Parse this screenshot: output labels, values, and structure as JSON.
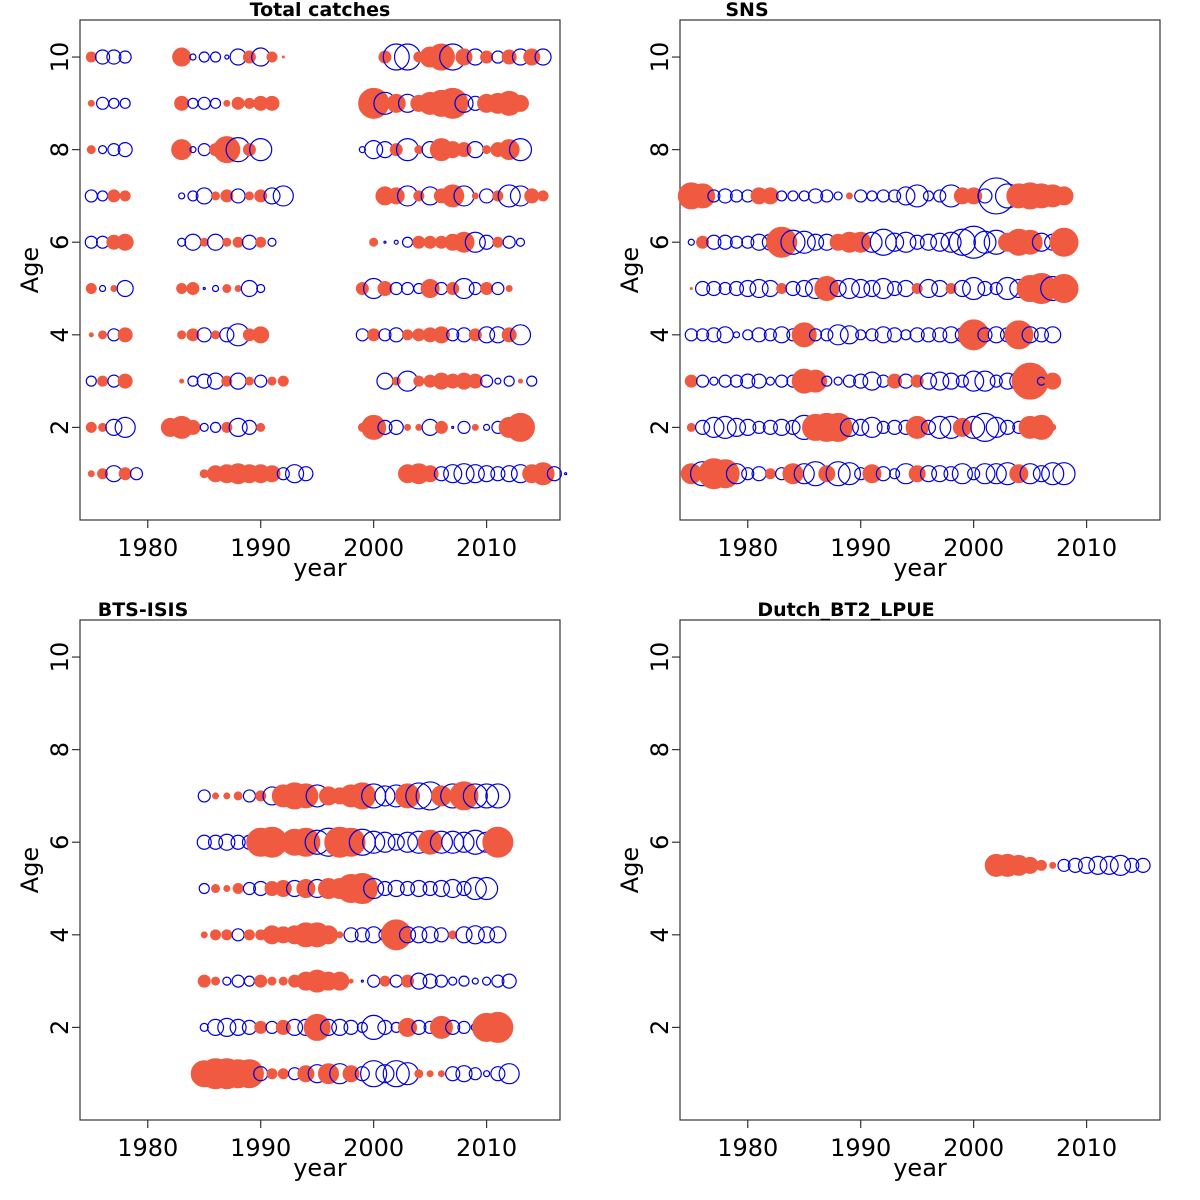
{
  "colors": {
    "positive": "#f05a40",
    "negative": "#0000dd",
    "axis": "#333333"
  },
  "chart_data": [
    {
      "type": "scatter",
      "title": "Total catches",
      "xlabel": "year",
      "ylabel": "Age",
      "xlim": [
        1974,
        2016.5
      ],
      "ylim": [
        0,
        10.8
      ],
      "xticks": [
        1980,
        1990,
        2000,
        2010
      ],
      "yticks": [
        2,
        4,
        6,
        8,
        10
      ],
      "marker_encoding": "filled = positive residual, open = negative residual; size = magnitude",
      "ages": [
        1,
        2,
        3,
        4,
        5,
        6,
        7,
        8,
        9,
        10
      ],
      "series": [
        {
          "age": 1,
          "year_start": 1975,
          "sizes": [
            3,
            5,
            -8,
            6,
            -6,
            0,
            0,
            0,
            0,
            0,
            4,
            8,
            9,
            10,
            9,
            9,
            8,
            -6,
            -9,
            -7,
            0,
            0,
            0,
            0,
            0,
            0,
            0,
            0,
            9,
            10,
            8,
            -7,
            -9,
            -10,
            -9,
            -8,
            -7,
            -8,
            -9,
            9,
            11,
            -7,
            -1
          ]
        },
        {
          "age": 2,
          "year_start": 1975,
          "sizes": [
            5,
            4,
            -8,
            -10,
            0,
            0,
            0,
            9,
            11,
            7,
            -4,
            -5,
            5,
            -9,
            -7,
            4,
            0,
            0,
            0,
            0,
            0,
            0,
            0,
            0,
            4,
            12,
            -7,
            -7,
            3,
            3,
            -8,
            6,
            -1,
            -6,
            3,
            -3,
            -6,
            10,
            14
          ]
        },
        {
          "age": 3,
          "year_start": 1975,
          "sizes": [
            -5,
            5,
            -6,
            7,
            0,
            0,
            0,
            0,
            2,
            -5,
            -7,
            -8,
            5,
            -8,
            4,
            -6,
            4,
            5,
            0,
            0,
            0,
            0,
            0,
            0,
            0,
            0,
            -8,
            4,
            -10,
            5,
            6,
            8,
            7,
            8,
            7,
            -6,
            -3,
            -5,
            2,
            -5
          ]
        },
        {
          "age": 4,
          "year_start": 1975,
          "sizes": [
            2,
            4,
            -6,
            7,
            0,
            0,
            0,
            0,
            4,
            6,
            -7,
            4,
            -7,
            -11,
            6,
            8,
            0,
            0,
            0,
            0,
            0,
            0,
            0,
            0,
            -6,
            6,
            -6,
            -7,
            5,
            6,
            7,
            8,
            -6,
            -7,
            6,
            -8,
            -8,
            7,
            -10
          ]
        },
        {
          "age": 5,
          "year_start": 1975,
          "sizes": [
            5,
            -3,
            3,
            -8,
            0,
            0,
            0,
            0,
            5,
            6,
            -1,
            -3,
            4,
            3,
            -8,
            -4,
            0,
            0,
            0,
            0,
            0,
            0,
            0,
            0,
            6,
            -10,
            7,
            -6,
            -6,
            -5,
            9,
            -6,
            6,
            -10,
            -6,
            6,
            -6,
            3
          ]
        },
        {
          "age": 6,
          "year_start": 1975,
          "sizes": [
            -6,
            -6,
            7,
            8,
            0,
            0,
            0,
            0,
            -4,
            -8,
            4,
            -8,
            4,
            5,
            -7,
            5,
            -4,
            0,
            0,
            0,
            0,
            0,
            0,
            0,
            0,
            4,
            -1,
            -2,
            -5,
            6,
            6,
            6,
            8,
            10,
            -10,
            -7,
            5,
            -6,
            -4
          ]
        },
        {
          "age": 7,
          "year_start": 1975,
          "sizes": [
            -6,
            -5,
            6,
            5,
            0,
            0,
            0,
            0,
            -3,
            -5,
            -8,
            4,
            6,
            -7,
            4,
            6,
            -8,
            -10,
            0,
            0,
            0,
            0,
            0,
            0,
            0,
            0,
            9,
            8,
            -10,
            5,
            -9,
            7,
            11,
            -10,
            3,
            -7,
            5,
            -11,
            -10,
            7,
            5
          ]
        },
        {
          "age": 8,
          "year_start": 1975,
          "sizes": [
            4,
            -4,
            -6,
            -7,
            0,
            0,
            0,
            0,
            10,
            -3,
            -6,
            6,
            13,
            -12,
            6,
            -11,
            0,
            0,
            0,
            0,
            0,
            0,
            0,
            0,
            -3,
            -9,
            -8,
            6,
            -11,
            4,
            -8,
            11,
            8,
            7,
            -8,
            4,
            7,
            10,
            -11
          ]
        },
        {
          "age": 9,
          "year_start": 1975,
          "sizes": [
            3,
            -6,
            -5,
            -5,
            0,
            0,
            0,
            0,
            7,
            -5,
            -6,
            -5,
            3,
            6,
            5,
            7,
            7,
            0,
            0,
            0,
            0,
            0,
            0,
            0,
            0,
            15,
            -11,
            9,
            -9,
            8,
            11,
            13,
            15,
            -9,
            -7,
            9,
            10,
            12,
            8
          ]
        },
        {
          "age": 10,
          "year_start": 1975,
          "sizes": [
            5,
            -7,
            -7,
            -6,
            0,
            0,
            0,
            0,
            9,
            -3,
            -5,
            -5,
            -2,
            -8,
            6,
            -9,
            5,
            1,
            0,
            0,
            0,
            0,
            0,
            0,
            0,
            0,
            6,
            -13,
            -13,
            5,
            10,
            13,
            -13,
            8,
            -8,
            6,
            -6,
            7,
            -8,
            8,
            -8
          ]
        }
      ]
    },
    {
      "type": "scatter",
      "title": "SNS",
      "xlabel": "year",
      "ylabel": "Age",
      "xlim": [
        1974,
        2016.5
      ],
      "ylim": [
        0,
        10.8
      ],
      "xticks": [
        1980,
        1990,
        2000,
        2010
      ],
      "yticks": [
        2,
        4,
        6,
        8,
        10
      ],
      "ages": [
        1,
        2,
        3,
        4,
        5,
        6,
        7
      ],
      "series": [
        {
          "age": 1,
          "year_start": 1975,
          "sizes": [
            10,
            -12,
            15,
            14,
            -10,
            -6,
            -7,
            5,
            -6,
            10,
            -10,
            -12,
            8,
            -12,
            -11,
            -6,
            9,
            -7,
            -5,
            -10,
            8,
            -8,
            -8,
            -7,
            -10,
            -6,
            -10,
            -10,
            -11,
            9,
            -10,
            -8,
            -11,
            -11
          ]
        },
        {
          "age": 2,
          "year_start": 1975,
          "sizes": [
            4,
            -7,
            -10,
            -11,
            -9,
            -8,
            -6,
            -7,
            -8,
            -7,
            -12,
            13,
            14,
            14,
            -9,
            -8,
            -10,
            -6,
            -7,
            -7,
            11,
            -7,
            -11,
            -11,
            9,
            -11,
            -14,
            -10,
            -7,
            -6,
            11,
            12,
            3
          ]
        },
        {
          "age": 3,
          "year_start": 1975,
          "sizes": [
            6,
            -6,
            -4,
            -6,
            -6,
            -7,
            -7,
            -4,
            -6,
            -6,
            12,
            11,
            -5,
            -4,
            -6,
            -7,
            -9,
            -6,
            7,
            -7,
            6,
            -8,
            -9,
            -8,
            -6,
            -10,
            -10,
            -6,
            -8,
            -9,
            18,
            -4,
            8
          ]
        },
        {
          "age": 4,
          "year_start": 1975,
          "sizes": [
            -6,
            -6,
            -7,
            -8,
            -3,
            -5,
            -7,
            -6,
            -8,
            -6,
            12,
            -6,
            -6,
            -10,
            -9,
            -5,
            -6,
            -8,
            -7,
            -5,
            -7,
            -7,
            -7,
            -8,
            -7,
            15,
            -7,
            -8,
            -7,
            14,
            -8,
            -7,
            -8
          ]
        },
        {
          "age": 5,
          "year_start": 1975,
          "sizes": [
            1,
            -7,
            -7,
            -6,
            -7,
            -8,
            -9,
            -8,
            5,
            -7,
            -8,
            -10,
            12,
            -8,
            -10,
            -9,
            -8,
            -10,
            -7,
            -8,
            5,
            -9,
            -8,
            5,
            -8,
            -11,
            -7,
            -6,
            -11,
            -9,
            13,
            15,
            -12,
            14
          ]
        },
        {
          "age": 6,
          "year_start": 1975,
          "sizes": [
            -3,
            6,
            -7,
            -7,
            -6,
            -6,
            -8,
            -8,
            15,
            -12,
            -11,
            -8,
            -8,
            8,
            10,
            10,
            -10,
            -13,
            -9,
            -10,
            -7,
            -8,
            -9,
            -10,
            -13,
            -16,
            -11,
            -12,
            9,
            13,
            12,
            -9,
            -8,
            14
          ]
        },
        {
          "age": 7,
          "year_start": 1975,
          "sizes": [
            13,
            12,
            -6,
            -7,
            -6,
            -6,
            8,
            8,
            -5,
            -5,
            -5,
            -7,
            -6,
            -4,
            3,
            -6,
            -5,
            -6,
            -6,
            -9,
            -11,
            -5,
            -6,
            -11,
            8,
            8,
            -7,
            -18,
            -12,
            12,
            13,
            12,
            11,
            9
          ]
        }
      ]
    },
    {
      "type": "scatter",
      "title": "BTS-ISIS",
      "xlabel": "year",
      "ylabel": "Age",
      "xlim": [
        1974,
        2016.5
      ],
      "ylim": [
        0,
        10.8
      ],
      "xticks": [
        1980,
        1990,
        2000,
        2010
      ],
      "yticks": [
        2,
        4,
        6,
        8,
        10
      ],
      "ages": [
        1,
        2,
        3,
        4,
        5,
        6,
        7
      ],
      "series": [
        {
          "age": 1,
          "year_start": 1985,
          "sizes": [
            13,
            15,
            15,
            14,
            14,
            -7,
            5,
            5,
            -6,
            8,
            -9,
            10,
            -10,
            8,
            -7,
            -13,
            -9,
            -13,
            -11,
            4,
            3,
            3,
            -7,
            -8,
            -6,
            -3,
            -7,
            -10
          ]
        },
        {
          "age": 2,
          "year_start": 1985,
          "sizes": [
            -4,
            -8,
            -9,
            -8,
            -7,
            6,
            -6,
            7,
            -8,
            -8,
            13,
            -8,
            -8,
            -7,
            -5,
            -12,
            -7,
            -5,
            9,
            -7,
            -6,
            11,
            -7,
            -6,
            -4,
            14,
            15
          ]
        },
        {
          "age": 3,
          "year_start": 1985,
          "sizes": [
            6,
            4,
            -4,
            -6,
            -5,
            6,
            4,
            4,
            6,
            9,
            11,
            9,
            9,
            2,
            -1,
            -6,
            5,
            -6,
            6,
            -8,
            -7,
            -6,
            -4,
            -5,
            -3,
            -4,
            -6,
            -7
          ]
        },
        {
          "age": 4,
          "year_start": 1985,
          "sizes": [
            3,
            5,
            5,
            -6,
            5,
            5,
            9,
            8,
            9,
            12,
            12,
            9,
            3,
            -7,
            -7,
            -8,
            -6,
            15,
            -8,
            -8,
            -8,
            -7,
            4,
            -8,
            -9,
            -8,
            -8
          ]
        },
        {
          "age": 5,
          "year_start": 1985,
          "sizes": [
            -5,
            4,
            3,
            5,
            -6,
            -7,
            7,
            8,
            -8,
            9,
            -9,
            10,
            10,
            14,
            15,
            -10,
            -7,
            -8,
            -7,
            -8,
            -7,
            -8,
            -9,
            -7,
            -11,
            -11
          ]
        },
        {
          "age": 6,
          "year_start": 1985,
          "sizes": [
            -7,
            -7,
            -8,
            -7,
            -7,
            14,
            15,
            1,
            13,
            14,
            -12,
            -14,
            15,
            14,
            -13,
            -11,
            -10,
            -8,
            -10,
            -11,
            12,
            -11,
            -11,
            -10,
            -12,
            -10,
            15
          ]
        },
        {
          "age": 7,
          "year_start": 1985,
          "sizes": [
            -6,
            3,
            3,
            4,
            -6,
            5,
            -9,
            11,
            13,
            12,
            -11,
            9,
            8,
            11,
            13,
            -12,
            -10,
            -11,
            12,
            -13,
            -14,
            10,
            -12,
            14,
            -12,
            -12,
            -12
          ]
        }
      ]
    },
    {
      "type": "scatter",
      "title": "Dutch_BT2_LPUE",
      "xlabel": "year",
      "ylabel": "Age",
      "xlim": [
        1974,
        2016.5
      ],
      "ylim": [
        0,
        10.8
      ],
      "xticks": [
        1980,
        1990,
        2000,
        2010
      ],
      "yticks": [
        2,
        4,
        6,
        8,
        10
      ],
      "ages": [
        5.5
      ],
      "series": [
        {
          "age": 5.5,
          "year_start": 2002,
          "sizes": [
            11,
            11,
            10,
            8,
            5,
            3,
            -6,
            -7,
            -8,
            -9,
            -9,
            -10,
            -7,
            -7
          ]
        }
      ]
    }
  ]
}
